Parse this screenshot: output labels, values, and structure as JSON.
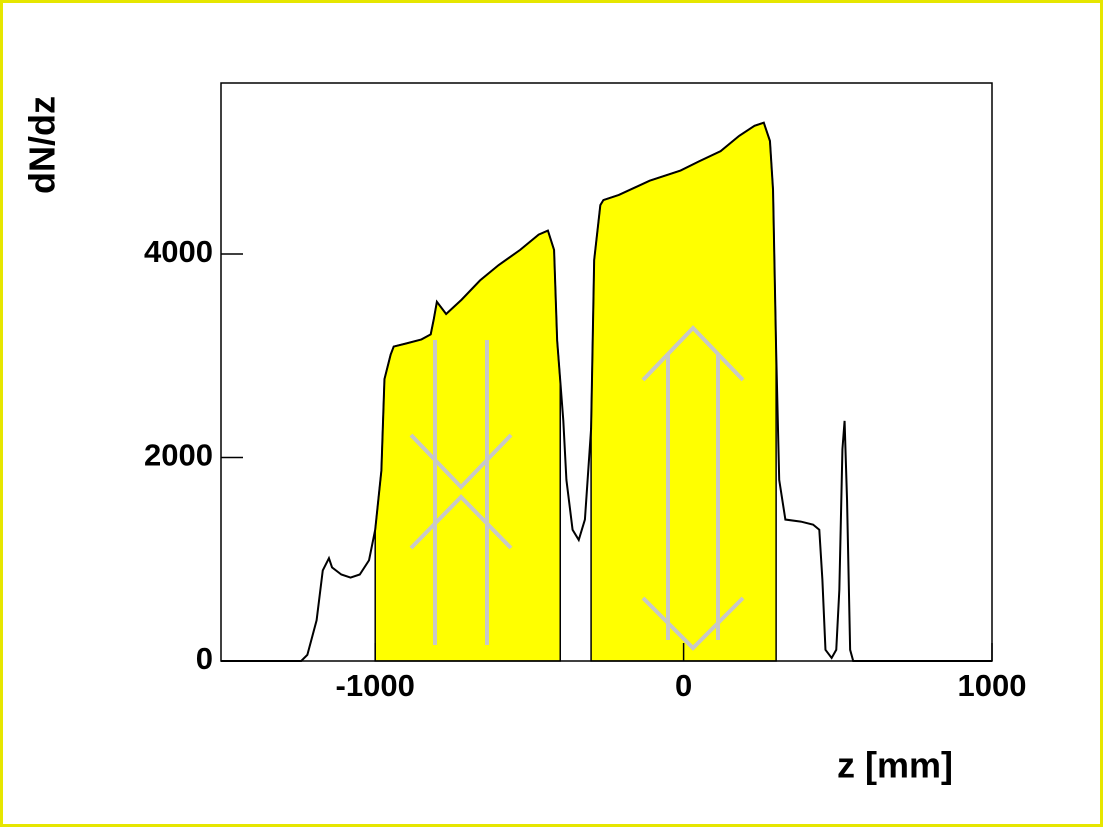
{
  "chart_data": {
    "type": "line",
    "x_label": "z [mm]",
    "y_label": "dN/dz",
    "x": [
      -1500,
      -1240,
      -1220,
      -1190,
      -1170,
      -1150,
      -1140,
      -1110,
      -1080,
      -1050,
      -1020,
      -1000,
      -980,
      -970,
      -950,
      -940,
      -900,
      -850,
      -820,
      -810,
      -800,
      -770,
      -720,
      -660,
      -600,
      -530,
      -470,
      -440,
      -420,
      -410,
      -390,
      -380,
      -360,
      -340,
      -320,
      -300,
      -290,
      -270,
      -260,
      -210,
      -110,
      -10,
      50,
      120,
      180,
      230,
      260,
      280,
      290,
      300,
      310,
      330,
      380,
      420,
      440,
      450,
      460,
      480,
      495,
      505,
      515,
      522,
      530,
      540,
      550,
      1000
    ],
    "series": [
      {
        "color": "#000000",
        "fill_color": "#ffff00",
        "values": [
          0,
          0,
          60,
          400,
          890,
          1010,
          920,
          850,
          820,
          850,
          990,
          1290,
          1870,
          2770,
          3010,
          3090,
          3120,
          3160,
          3210,
          3360,
          3530,
          3410,
          3550,
          3740,
          3890,
          4040,
          4190,
          4230,
          4040,
          3150,
          2360,
          1780,
          1290,
          1190,
          1390,
          2280,
          3940,
          4480,
          4530,
          4580,
          4720,
          4820,
          4910,
          5010,
          5160,
          5260,
          5290,
          5110,
          4630,
          3060,
          1780,
          1390,
          1370,
          1340,
          1290,
          800,
          110,
          30,
          110,
          700,
          2080,
          2360,
          1580,
          110,
          0,
          0
        ]
      }
    ],
    "fill_ranges": [
      [
        -1000,
        -400
      ],
      [
        -300,
        300
      ]
    ],
    "xlim": [
      -1500,
      1000
    ],
    "xticks": [
      -1000,
      0,
      1000
    ],
    "ylim": [
      0,
      5680
    ],
    "yticks": [
      0,
      2000,
      4000
    ]
  }
}
